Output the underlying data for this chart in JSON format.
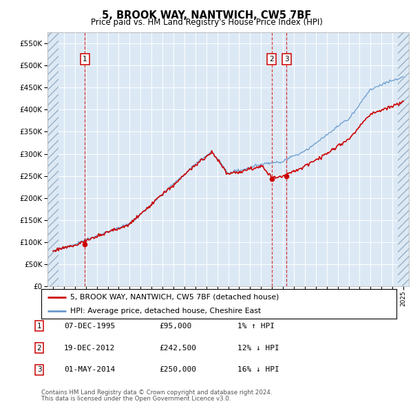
{
  "title": "5, BROOK WAY, NANTWICH, CW5 7BF",
  "subtitle": "Price paid vs. HM Land Registry's House Price Index (HPI)",
  "legend_label1": "5, BROOK WAY, NANTWICH, CW5 7BF (detached house)",
  "legend_label2": "HPI: Average price, detached house, Cheshire East",
  "footer1": "Contains HM Land Registry data © Crown copyright and database right 2024.",
  "footer2": "This data is licensed under the Open Government Licence v3.0.",
  "transactions": [
    {
      "id": 1,
      "date": "07-DEC-1995",
      "price": 95000,
      "hpi_rel": "1% ↑ HPI",
      "year": 1995.92
    },
    {
      "id": 2,
      "date": "19-DEC-2012",
      "price": 242500,
      "hpi_rel": "12% ↓ HPI",
      "year": 2012.96
    },
    {
      "id": 3,
      "date": "01-MAY-2014",
      "price": 250000,
      "hpi_rel": "16% ↓ HPI",
      "year": 2014.33
    }
  ],
  "hpi_line_color": "#6699cc",
  "price_line_color": "#cc0000",
  "background_color": "#dce9f5",
  "ylim": [
    0,
    575000
  ],
  "yticks": [
    0,
    50000,
    100000,
    150000,
    200000,
    250000,
    300000,
    350000,
    400000,
    450000,
    500000,
    550000
  ],
  "xmin": 1992.5,
  "xmax": 2025.5,
  "hatch_xstart": 1993.5,
  "hatch_xend": 2024.5
}
